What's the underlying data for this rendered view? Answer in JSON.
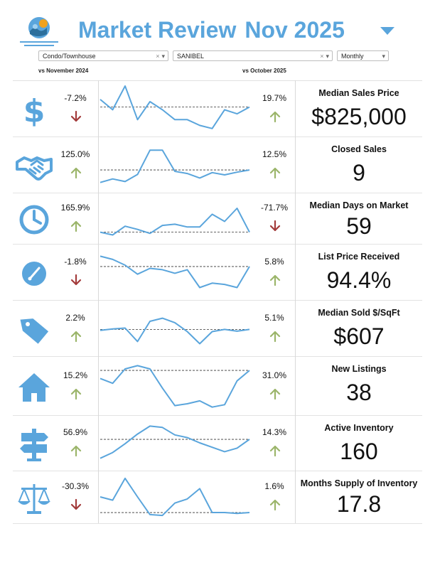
{
  "header": {
    "title": "Market Review",
    "period": "Nov 2025",
    "accent_color": "#5aa5dc"
  },
  "filters": {
    "property_type": "Condo/Townhouse",
    "area": "SANIBEL",
    "frequency": "Monthly"
  },
  "comparisons": {
    "yoy_label": "vs November 2024",
    "mom_label": "vs October 2025"
  },
  "colors": {
    "up": "#9bb56a",
    "down": "#a33b3b",
    "line": "#5aa5dc",
    "icon": "#5aa5dc"
  },
  "rows": [
    {
      "icon": "dollar-icon",
      "name": "Median Sales Price",
      "value": "$825,000",
      "yoy": "-7.2%",
      "yoy_dir": "down",
      "mom": "19.7%",
      "mom_dir": "up",
      "spark": [
        0.3,
        0.53,
        0.0,
        0.75,
        0.35,
        0.53,
        0.75,
        0.75,
        0.88,
        0.95,
        0.53,
        0.62,
        0.47
      ],
      "baseline": 0.47
    },
    {
      "icon": "handshake-icon",
      "name": "Closed Sales",
      "value": "9",
      "yoy": "125.0%",
      "yoy_dir": "up",
      "mom": "12.5%",
      "mom_dir": "up",
      "spark": [
        0.9,
        0.82,
        0.88,
        0.72,
        0.18,
        0.18,
        0.65,
        0.7,
        0.8,
        0.68,
        0.73,
        0.67,
        0.62
      ],
      "baseline": 0.62
    },
    {
      "icon": "clock-icon",
      "name": "Median Days on Market",
      "value": "59",
      "yoy": "165.9%",
      "yoy_dir": "up",
      "mom": "-71.7%",
      "mom_dir": "down",
      "spark": [
        0.85,
        0.92,
        0.7,
        0.78,
        0.88,
        0.68,
        0.65,
        0.72,
        0.72,
        0.4,
        0.58,
        0.25,
        0.85
      ],
      "baseline": 0.85
    },
    {
      "icon": "gauge-icon",
      "name": "List Price Received",
      "value": "94.4%",
      "yoy": "-1.8%",
      "yoy_dir": "down",
      "mom": "5.8%",
      "mom_dir": "up",
      "spark": [
        0.15,
        0.22,
        0.35,
        0.55,
        0.42,
        0.45,
        0.53,
        0.45,
        0.85,
        0.75,
        0.78,
        0.85,
        0.38
      ],
      "baseline": 0.38
    },
    {
      "icon": "price-tag-icon",
      "name": "Median Sold $/SqFt",
      "value": "$607",
      "yoy": "2.2%",
      "yoy_dir": "up",
      "mom": "5.1%",
      "mom_dir": "up",
      "spark": [
        0.55,
        0.52,
        0.5,
        0.8,
        0.35,
        0.28,
        0.38,
        0.58,
        0.85,
        0.58,
        0.53,
        0.57,
        0.53
      ],
      "baseline": 0.53
    },
    {
      "icon": "house-icon",
      "name": "New Listings",
      "value": "38",
      "yoy": "15.2%",
      "yoy_dir": "up",
      "mom": "31.0%",
      "mom_dir": "up",
      "spark": [
        0.35,
        0.45,
        0.15,
        0.08,
        0.15,
        0.55,
        0.92,
        0.88,
        0.82,
        0.95,
        0.9,
        0.4,
        0.18
      ],
      "baseline": 0.18
    },
    {
      "icon": "signpost-icon",
      "name": "Active Inventory",
      "value": "160",
      "yoy": "56.9%",
      "yoy_dir": "up",
      "mom": "14.3%",
      "mom_dir": "up",
      "spark": [
        0.85,
        0.72,
        0.52,
        0.3,
        0.12,
        0.15,
        0.32,
        0.38,
        0.5,
        0.6,
        0.7,
        0.62,
        0.42
      ],
      "baseline": 0.42
    },
    {
      "icon": "scale-icon",
      "name": "Months Supply of Inventory",
      "value": "17.8",
      "yoy": "-30.3%",
      "yoy_dir": "down",
      "mom": "1.6%",
      "mom_dir": "up",
      "spark": [
        0.5,
        0.58,
        0.05,
        0.5,
        0.93,
        0.95,
        0.65,
        0.55,
        0.3,
        0.88,
        0.88,
        0.9,
        0.88
      ],
      "baseline": 0.88
    }
  ]
}
